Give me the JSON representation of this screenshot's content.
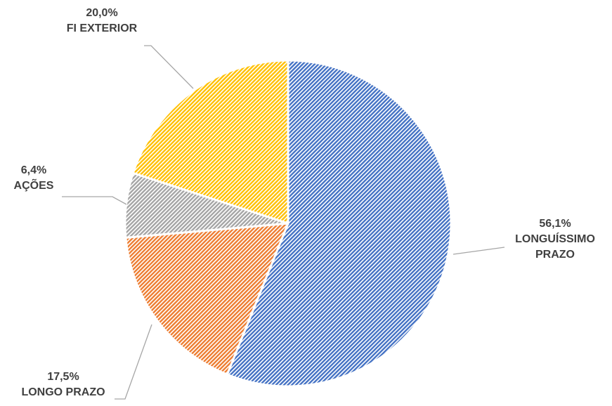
{
  "chart_data": {
    "type": "pie",
    "categories": [
      "LONGUÍSSIMO PRAZO",
      "LONGO PRAZO",
      "AÇÕES",
      "FI EXTERIOR"
    ],
    "values": [
      56.1,
      17.5,
      6.4,
      20.0
    ],
    "value_labels": [
      "56,1%",
      "17,5%",
      "6,4%",
      "20,0%"
    ],
    "colors": [
      "#4472c4",
      "#ed7d31",
      "#a5a5a5",
      "#ffc000"
    ]
  }
}
